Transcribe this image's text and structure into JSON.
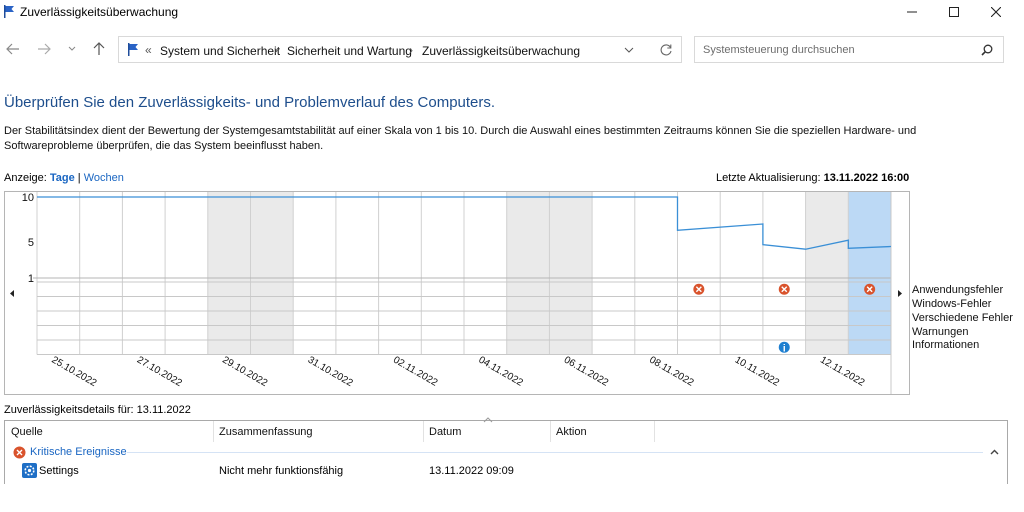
{
  "window": {
    "title": "Zuverlässigkeitsüberwachung",
    "minimize_icon": "minimize-icon",
    "maximize_icon": "maximize-icon",
    "close_icon": "close-icon"
  },
  "nav": {
    "breadcrumbs": [
      "System und Sicherheit",
      "Sicherheit und Wartung",
      "Zuverlässigkeitsüberwachung"
    ],
    "overflow_marker": "«",
    "search_placeholder": "Systemsteuerung durchsuchen"
  },
  "main": {
    "heading": "Überprüfen Sie den Zuverlässigkeits- und Problemverlauf des Computers.",
    "description": "Der Stabilitätsindex dient der Bewertung der Systemgesamtstabilität auf einer Skala von 1 bis 10. Durch die Auswahl eines bestimmten Zeitraums können Sie die speziellen Hardware- und Softwareprobleme überprüfen, die das System beeinflusst haben.",
    "view_label": "Anzeige:",
    "view_days": "Tage",
    "view_separator": "|",
    "view_weeks": "Wochen",
    "last_update_label": "Letzte Aktualisierung:",
    "last_update_value": "13.11.2022 16:00"
  },
  "chart_data": {
    "type": "line",
    "y_ticks": [
      "10",
      "5",
      "1"
    ],
    "ylim": [
      1,
      10
    ],
    "dates": [
      "25.10.2022",
      "26.10.2022",
      "27.10.2022",
      "28.10.2022",
      "29.10.2022",
      "30.10.2022",
      "31.10.2022",
      "01.11.2022",
      "02.11.2022",
      "03.11.2022",
      "04.11.2022",
      "05.11.2022",
      "06.11.2022",
      "07.11.2022",
      "08.11.2022",
      "09.11.2022",
      "10.11.2022",
      "11.11.2022",
      "12.11.2022",
      "13.11.2022"
    ],
    "date_labels": [
      "25.10.2022",
      "27.10.2022",
      "29.10.2022",
      "31.10.2022",
      "02.11.2022",
      "04.11.2022",
      "06.11.2022",
      "08.11.2022",
      "10.11.2022",
      "12.11.2022"
    ],
    "stability_index": [
      {
        "x": "25.10.2022",
        "y": 10
      },
      {
        "x": "09.11.2022",
        "y": 10
      },
      {
        "x": "09.11.2022",
        "y": 6.3
      },
      {
        "x": "11.11.2022",
        "y": 7
      },
      {
        "x": "11.11.2022",
        "y": 4.7
      },
      {
        "x": "12.11.2022",
        "y": 4.2
      },
      {
        "x": "13.11.2022",
        "y": 5.2
      },
      {
        "x": "13.11.2022",
        "y": 4.3
      },
      {
        "x": "14.11.2022",
        "y": 4.5
      }
    ],
    "selected_date": "13.11.2022",
    "event_rows": [
      "Anwendungsfehler",
      "Windows-Fehler",
      "Verschiedene Fehler",
      "Warnungen",
      "Informationen"
    ],
    "events": [
      {
        "date": "09.11.2022",
        "row": "Anwendungsfehler",
        "kind": "error"
      },
      {
        "date": "11.11.2022",
        "row": "Anwendungsfehler",
        "kind": "error"
      },
      {
        "date": "13.11.2022",
        "row": "Anwendungsfehler",
        "kind": "error"
      },
      {
        "date": "11.11.2022",
        "row": "Informationen",
        "kind": "info"
      }
    ],
    "colors": {
      "line": "#3a8fd6",
      "weekend": "#eaeaea",
      "selected": "#bcd9f5",
      "error": "#d9532c",
      "info": "#1e7fd0"
    }
  },
  "details": {
    "label": "Zuverlässigkeitsdetails für: 13.11.2022",
    "columns": [
      "Quelle",
      "Zusammenfassung",
      "Datum",
      "Aktion"
    ],
    "group_label": "Kritische Ereignisse",
    "rows": [
      {
        "source": "Settings",
        "summary": "Nicht mehr funktionsfähig",
        "date": "13.11.2022 09:09",
        "action": ""
      }
    ]
  }
}
